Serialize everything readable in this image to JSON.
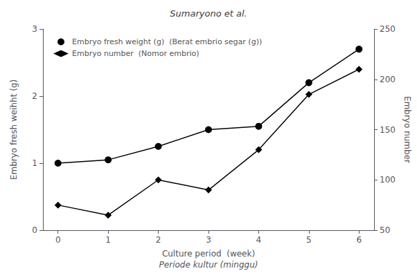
{
  "chart_data": {
    "type": "line",
    "title": "Sumaryono et al.",
    "xlabel": [
      "Culture period  (week)",
      "Periode kultur (minggu)"
    ],
    "ylabel": "Embryo fresh weihht (g)",
    "y2label": "Embryo number",
    "x": [
      0,
      1,
      2,
      3,
      4,
      5,
      6
    ],
    "series": [
      {
        "name": "Embryo fresh weight (g)  (Berat embrio segar (g))",
        "color": "black",
        "marker": "circle",
        "axis": "y",
        "values": [
          1.0,
          1.05,
          1.25,
          1.5,
          1.55,
          2.2,
          2.7
        ]
      },
      {
        "name": "Embryo number  (Nomor embrio)",
        "color": "black",
        "marker": "diamond",
        "axis": "y2",
        "values": [
          75,
          65,
          100,
          90,
          130,
          185,
          210
        ]
      }
    ],
    "xlim": [
      -0.3,
      6.3
    ],
    "xticks": [
      0,
      1,
      2,
      3,
      4,
      5,
      6
    ],
    "ylim": [
      0,
      3
    ],
    "yticks": [
      0,
      1,
      2,
      3
    ],
    "y2lim": [
      50,
      250
    ],
    "y2ticks": [
      50,
      100,
      150,
      200,
      250
    ],
    "grid": false,
    "legend": "upper left"
  }
}
